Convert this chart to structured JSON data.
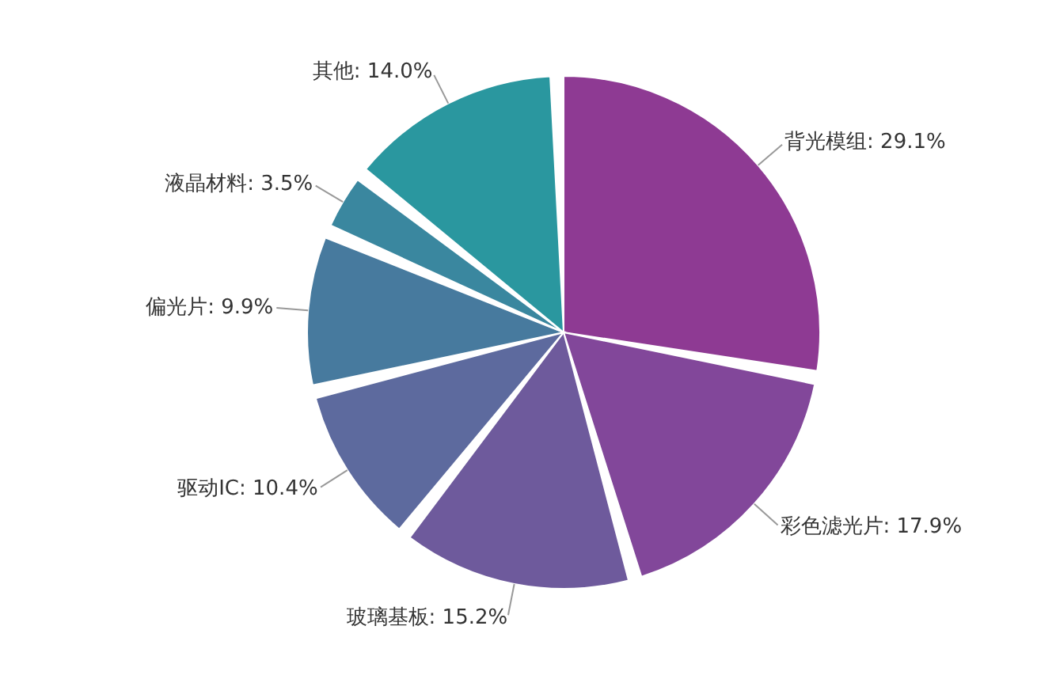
{
  "chart_data": {
    "type": "pie",
    "categories": [
      "背光模组",
      "彩色滤光片",
      "玻璃基板",
      "驱动IC",
      "偏光片",
      "液晶材料",
      "其他"
    ],
    "values": [
      29.1,
      17.9,
      15.2,
      10.4,
      9.9,
      3.5,
      14.0
    ],
    "value_labels": [
      "29.1%",
      "17.9%",
      "15.2%",
      "10.4%",
      "9.9%",
      "3.5%",
      "14.0%"
    ],
    "colors": [
      "#8e3a93",
      "#82479a",
      "#6e5a9c",
      "#5d6a9e",
      "#477a9e",
      "#3a879f",
      "#2a979f"
    ],
    "legend": false
  }
}
